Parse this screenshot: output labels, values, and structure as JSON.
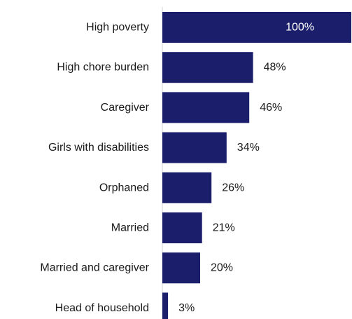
{
  "chart_data": {
    "type": "bar",
    "orientation": "horizontal",
    "categories": [
      "High poverty",
      "High chore burden",
      "Caregiver",
      "Girls with disabilities",
      "Orphaned",
      "Married",
      "Married and caregiver",
      "Head of household"
    ],
    "values": [
      100,
      48,
      46,
      34,
      26,
      21,
      20,
      3
    ],
    "value_labels": [
      "100%",
      "48%",
      "46%",
      "34%",
      "26%",
      "21%",
      "20%",
      "3%"
    ],
    "title": "",
    "xlabel": "",
    "ylabel": "",
    "xlim": [
      0,
      100
    ],
    "grid": false,
    "legend": "none",
    "bar_color": "#1b1f6b",
    "axis_color": "#d0d0d0"
  }
}
